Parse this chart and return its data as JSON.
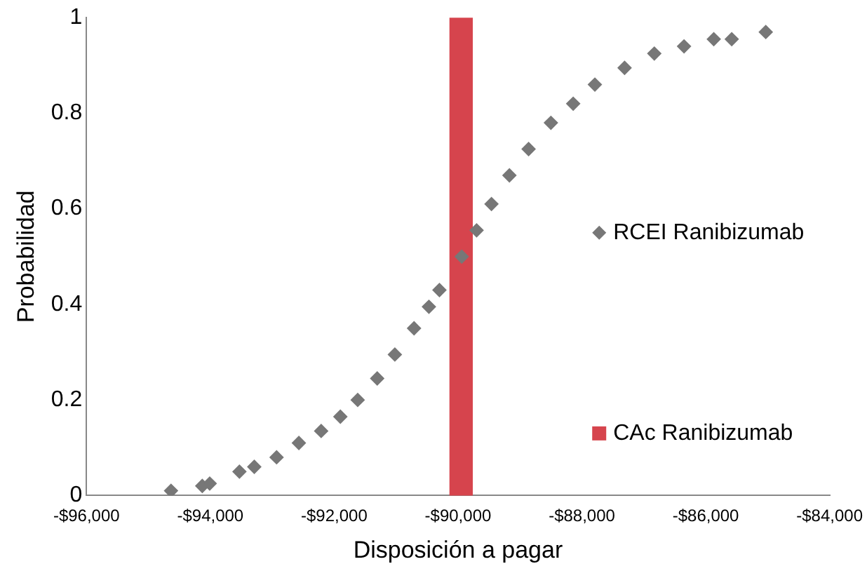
{
  "chart_data": {
    "type": "scatter",
    "xlabel": "Disposición a pagar",
    "ylabel": "Probabilidad",
    "xlim": [
      -96000,
      -84000
    ],
    "xticks": [
      {
        "value": -96000,
        "label": "-$96,000"
      },
      {
        "value": -94000,
        "label": "-$94,000"
      },
      {
        "value": -92000,
        "label": "-$92,000"
      },
      {
        "value": -90000,
        "label": "-$90,000"
      },
      {
        "value": -88000,
        "label": "-$88,000"
      },
      {
        "value": -86000,
        "label": "-$86,000"
      },
      {
        "value": -84000,
        "label": "-$84,000"
      }
    ],
    "ylim": [
      0,
      1
    ],
    "yticks": [
      0,
      0.2,
      0.4,
      0.6,
      0.8,
      1
    ],
    "grid": false,
    "legend": "right",
    "marker": "diamond",
    "series": [
      {
        "name": "RCEI Ranibizumab",
        "color": "#777777",
        "x": [
          -94635,
          -94130,
          -94010,
          -93530,
          -93290,
          -92930,
          -92570,
          -92210,
          -91900,
          -91620,
          -91305,
          -91020,
          -90710,
          -90470,
          -90300,
          -89940,
          -89700,
          -89460,
          -89170,
          -88860,
          -88500,
          -88140,
          -87790,
          -87310,
          -86830,
          -86350,
          -85870,
          -85580,
          -85030
        ],
        "values": [
          0.01,
          0.02,
          0.025,
          0.05,
          0.06,
          0.08,
          0.11,
          0.135,
          0.165,
          0.2,
          0.245,
          0.295,
          0.35,
          0.395,
          0.43,
          0.5,
          0.555,
          0.61,
          0.67,
          0.725,
          0.78,
          0.82,
          0.86,
          0.895,
          0.925,
          0.94,
          0.955,
          0.955,
          0.97
        ]
      },
      {
        "name": "CAc Ranibizumab",
        "type": "bar",
        "color": "#d6444d",
        "x": [
          -89950
        ],
        "values": [
          1
        ]
      }
    ]
  }
}
